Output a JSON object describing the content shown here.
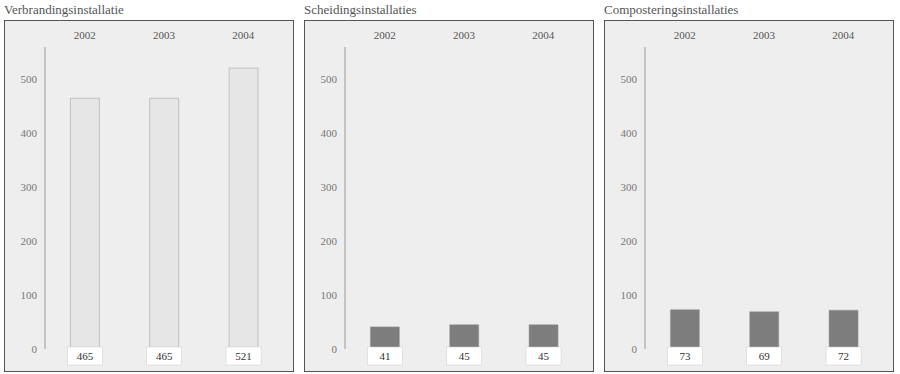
{
  "chart_data": [
    {
      "type": "bar",
      "title": "Verbrandingsinstallatie",
      "categories": [
        "2002",
        "2003",
        "2004"
      ],
      "values": [
        465,
        465,
        521
      ],
      "color": "#e6e6e6",
      "ylim": [
        0,
        560
      ],
      "yticks": [
        0,
        100,
        200,
        300,
        400,
        500
      ],
      "grid": false,
      "data_labels": true
    },
    {
      "type": "bar",
      "title": "Scheidingsinstallaties",
      "categories": [
        "2002",
        "2003",
        "2004"
      ],
      "values": [
        41,
        45,
        45
      ],
      "color": "#7d7d7d",
      "ylim": [
        0,
        560
      ],
      "yticks": [
        0,
        100,
        200,
        300,
        400,
        500
      ],
      "grid": false,
      "data_labels": true
    },
    {
      "type": "bar",
      "title": "Composteringsinstallaties",
      "categories": [
        "2002",
        "2003",
        "2004"
      ],
      "values": [
        73,
        69,
        72
      ],
      "color": "#7d7d7d",
      "ylim": [
        0,
        560
      ],
      "yticks": [
        0,
        100,
        200,
        300,
        400,
        500
      ],
      "grid": false,
      "data_labels": true
    }
  ]
}
